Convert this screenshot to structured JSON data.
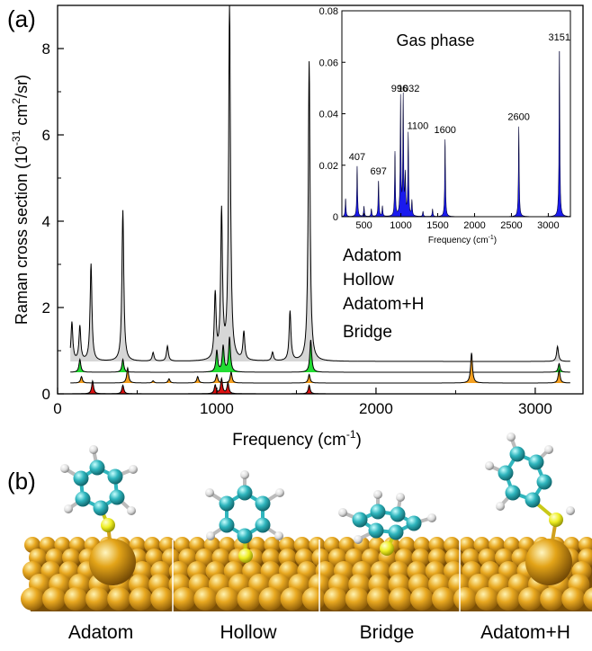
{
  "panel_a": {
    "label": "(a)",
    "legend": [
      "Adatom",
      "Hollow",
      "Adatom+H",
      "Bridge"
    ]
  },
  "panel_b": {
    "label": "(b)",
    "captions": [
      "Adatom",
      "Hollow",
      "Bridge",
      "Adatom+H"
    ]
  },
  "colors": {
    "adatom_fill": "#d6d6d6",
    "hollow_fill": "#22dd33",
    "adatom_h_fill": "#f5a020",
    "bridge_fill": "#dd1111",
    "inset_bars": "#1a1aee",
    "gold": "#e8a820",
    "carbon": "#2fb5bd",
    "sulfur": "#eeee22",
    "hydrogen": "#dddddd"
  },
  "chart_data": [
    {
      "type": "line",
      "xlabel_base": "Frequency (cm",
      "xlabel_sup": "-1",
      "xlabel_tail": ")",
      "ylabel_base": "Raman cross section  (10",
      "ylabel_sup1": "-31",
      "ylabel_mid": " cm",
      "ylabel_sup2": "2",
      "ylabel_tail": "/sr)",
      "xlim": [
        0,
        3300
      ],
      "ylim": [
        0,
        9
      ],
      "xticks": [
        0,
        1000,
        2000,
        3000
      ],
      "yticks": [
        0,
        2,
        4,
        6,
        8
      ],
      "series": [
        {
          "name": "Adatom",
          "offset": 0.75,
          "width": 14,
          "peaks": [
            [
              90,
              0.9
            ],
            [
              140,
              0.8
            ],
            [
              210,
              2.25
            ],
            [
              410,
              3.5
            ],
            [
              600,
              0.2
            ],
            [
              690,
              0.35
            ],
            [
              990,
              1.5
            ],
            [
              1030,
              3.4
            ],
            [
              1080,
              8.3
            ],
            [
              1170,
              0.65
            ],
            [
              1350,
              0.2
            ],
            [
              1460,
              1.15
            ],
            [
              1580,
              6.95
            ],
            [
              3140,
              0.35
            ]
          ]
        },
        {
          "name": "Hollow",
          "offset": 0.5,
          "width": 14,
          "peaks": [
            [
              140,
              0.3
            ],
            [
              410,
              0.3
            ],
            [
              1000,
              0.5
            ],
            [
              1040,
              0.6
            ],
            [
              1080,
              0.8
            ],
            [
              1590,
              0.75
            ],
            [
              3150,
              0.2
            ]
          ]
        },
        {
          "name": "Adatom+H",
          "offset": 0.25,
          "width": 14,
          "peaks": [
            [
              150,
              0.15
            ],
            [
              440,
              0.35
            ],
            [
              600,
              0.05
            ],
            [
              700,
              0.1
            ],
            [
              880,
              0.15
            ],
            [
              1000,
              0.2
            ],
            [
              1090,
              0.25
            ],
            [
              1580,
              0.2
            ],
            [
              2600,
              0.7
            ],
            [
              3150,
              0.3
            ]
          ]
        },
        {
          "name": "Bridge",
          "offset": 0.0,
          "width": 14,
          "peaks": [
            [
              220,
              0.3
            ],
            [
              410,
              0.2
            ],
            [
              990,
              0.2
            ],
            [
              1030,
              0.35
            ],
            [
              1070,
              0.25
            ],
            [
              1580,
              0.2
            ]
          ]
        }
      ]
    },
    {
      "type": "bar",
      "title": "Gas phase",
      "xlabel_base": "Frequency (cm",
      "xlabel_sup": "-1",
      "xlabel_tail": ")",
      "xlim": [
        200,
        3300
      ],
      "ylim": [
        0,
        0.08
      ],
      "xticks": [
        500,
        1000,
        1500,
        2000,
        2500,
        3000
      ],
      "yticks": [
        0,
        0.02,
        0.04,
        0.06,
        0.08
      ],
      "ytick_labels": [
        "0",
        "0.02",
        "0.04",
        "0.06",
        "0.08"
      ],
      "width": 12,
      "peaks": [
        [
          250,
          0.007
        ],
        [
          407,
          0.02
        ],
        [
          500,
          0.004
        ],
        [
          600,
          0.003
        ],
        [
          697,
          0.014
        ],
        [
          750,
          0.004
        ],
        [
          920,
          0.025
        ],
        [
          996,
          0.046
        ],
        [
          1032,
          0.046
        ],
        [
          1060,
          0.015
        ],
        [
          1100,
          0.032
        ],
        [
          1150,
          0.006
        ],
        [
          1300,
          0.002
        ],
        [
          1430,
          0.003
        ],
        [
          1600,
          0.03
        ],
        [
          2600,
          0.035
        ],
        [
          3151,
          0.066
        ]
      ],
      "peak_labels": [
        {
          "text": "407",
          "x": 407,
          "y": 0.022
        },
        {
          "text": "697",
          "x": 697,
          "y": 0.0165
        },
        {
          "text": "996",
          "x": 980,
          "y": 0.0485
        },
        {
          "text": "1032",
          "x": 1105,
          "y": 0.0485
        },
        {
          "text": "1100",
          "x": 1230,
          "y": 0.034
        },
        {
          "text": "1600",
          "x": 1600,
          "y": 0.0325
        },
        {
          "text": "2600",
          "x": 2600,
          "y": 0.0375
        },
        {
          "text": "3151",
          "x": 3151,
          "y": 0.0685
        }
      ]
    }
  ]
}
